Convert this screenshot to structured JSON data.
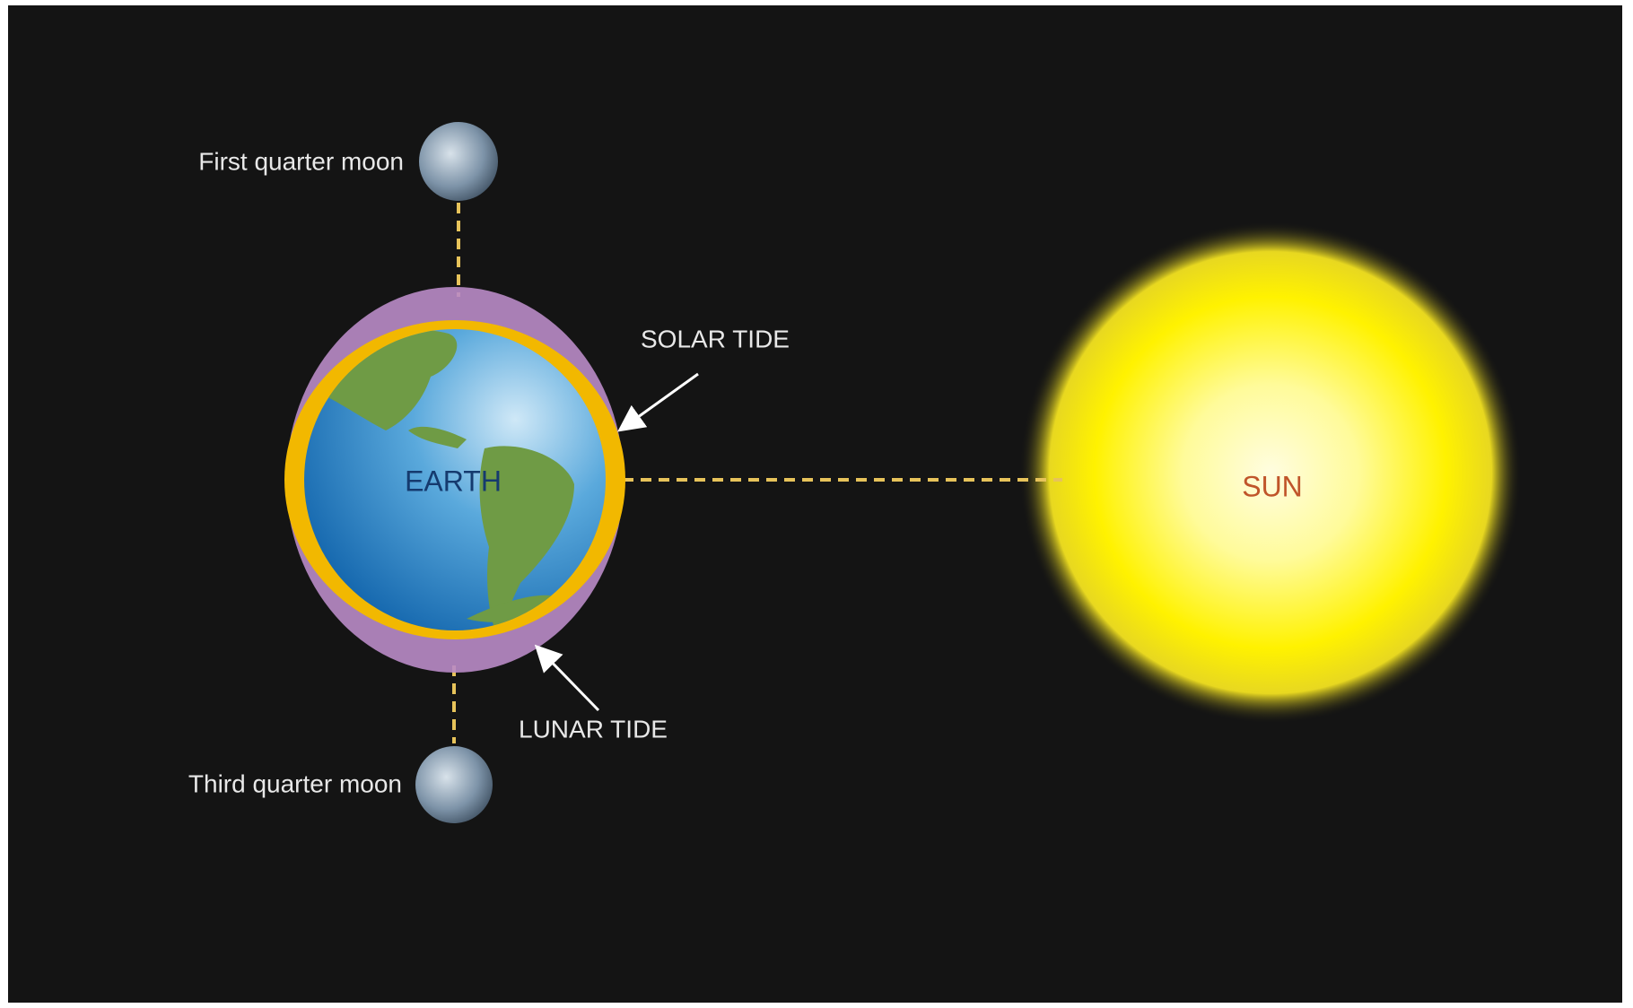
{
  "labels": {
    "first_quarter_moon": "First quarter moon",
    "third_quarter_moon": "Third quarter moon",
    "solar_tide": "SOLAR TIDE",
    "lunar_tide": "LUNAR TIDE",
    "earth": "EARTH",
    "sun": "SUN"
  }
}
